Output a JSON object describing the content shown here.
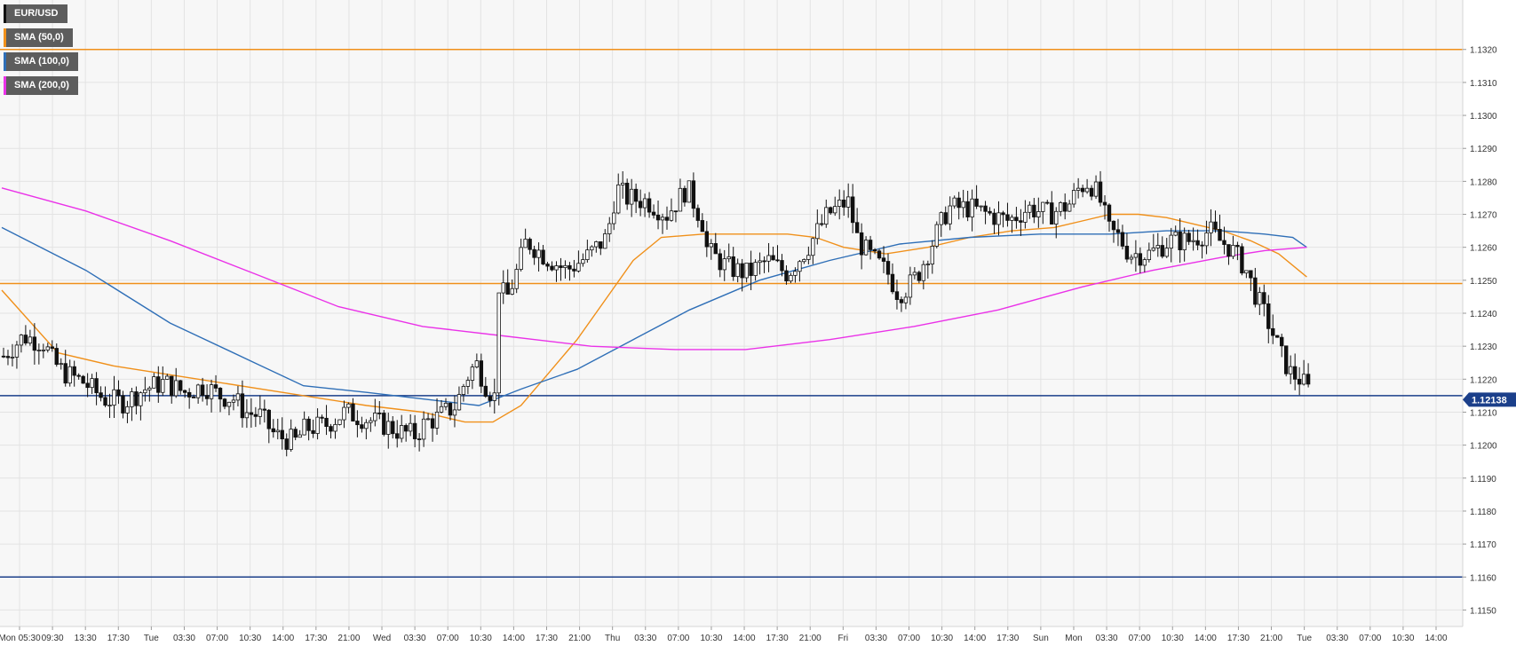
{
  "chart_data": {
    "type": "candlestick",
    "symbol": "EUR/USD",
    "y_range": [
      1.1145,
      1.1335
    ],
    "x_ticks": [
      "Mon 05:30",
      "09:30",
      "13:30",
      "17:30",
      "Tue",
      "03:30",
      "07:00",
      "10:30",
      "14:00",
      "17:30",
      "21:00",
      "Wed",
      "03:30",
      "07:00",
      "10:30",
      "14:00",
      "17:30",
      "21:00",
      "Thu",
      "03:30",
      "07:00",
      "10:30",
      "14:00",
      "17:30",
      "21:00",
      "Fri",
      "03:30",
      "07:00",
      "10:30",
      "14:00",
      "17:30",
      "Sun",
      "Mon",
      "03:30",
      "07:00",
      "10:30",
      "14:00",
      "17:30",
      "21:00",
      "Tue",
      "03:30",
      "07:00",
      "10:30",
      "14:00"
    ],
    "y_ticks": [
      "1.1320",
      "1.1310",
      "1.1300",
      "1.1290",
      "1.1280",
      "1.1270",
      "1.1260",
      "1.1250",
      "1.1240",
      "1.1230",
      "1.1220",
      "1.1210",
      "1.1200",
      "1.1190",
      "1.1180",
      "1.1170",
      "1.1160",
      "1.1150"
    ],
    "indicators": [
      {
        "name": "SMA (50,0)",
        "color": "#f0901a"
      },
      {
        "name": "SMA (100,0)",
        "color": "#2f6fb7"
      },
      {
        "name": "SMA (200,0)",
        "color": "#ea32e8"
      }
    ],
    "sma_anchor_points": {
      "sma50": [
        [
          0,
          1.1247
        ],
        [
          40,
          1.1228
        ],
        [
          80,
          1.1224
        ],
        [
          140,
          1.122
        ],
        [
          200,
          1.1216
        ],
        [
          260,
          1.1212
        ],
        [
          300,
          1.121
        ],
        [
          330,
          1.1207
        ],
        [
          350,
          1.1207
        ],
        [
          370,
          1.1212
        ],
        [
          390,
          1.1222
        ],
        [
          410,
          1.1232
        ],
        [
          430,
          1.1244
        ],
        [
          450,
          1.1256
        ],
        [
          470,
          1.1263
        ],
        [
          500,
          1.1264
        ],
        [
          530,
          1.1264
        ],
        [
          560,
          1.1264
        ],
        [
          580,
          1.1263
        ],
        [
          600,
          1.126
        ],
        [
          630,
          1.1258
        ],
        [
          660,
          1.126
        ],
        [
          690,
          1.1263
        ],
        [
          720,
          1.1265
        ],
        [
          750,
          1.1266
        ],
        [
          770,
          1.1268
        ],
        [
          790,
          1.127
        ],
        [
          810,
          1.127
        ],
        [
          830,
          1.1269
        ],
        [
          850,
          1.1267
        ],
        [
          870,
          1.1265
        ],
        [
          890,
          1.1262
        ],
        [
          910,
          1.1258
        ],
        [
          930,
          1.1251
        ]
      ],
      "sma100": [
        [
          0,
          1.1266
        ],
        [
          60,
          1.1253
        ],
        [
          120,
          1.1237
        ],
        [
          180,
          1.1225
        ],
        [
          215,
          1.1218
        ],
        [
          260,
          1.1216
        ],
        [
          300,
          1.1214
        ],
        [
          340,
          1.1212
        ],
        [
          370,
          1.1217
        ],
        [
          410,
          1.1223
        ],
        [
          450,
          1.1232
        ],
        [
          490,
          1.1241
        ],
        [
          540,
          1.125
        ],
        [
          590,
          1.1256
        ],
        [
          640,
          1.1261
        ],
        [
          690,
          1.1263
        ],
        [
          740,
          1.1264
        ],
        [
          790,
          1.1264
        ],
        [
          830,
          1.1265
        ],
        [
          870,
          1.1265
        ],
        [
          900,
          1.1264
        ],
        [
          920,
          1.1263
        ],
        [
          930,
          1.126
        ]
      ],
      "sma200": [
        [
          0,
          1.1278
        ],
        [
          60,
          1.1271
        ],
        [
          120,
          1.1262
        ],
        [
          180,
          1.1252
        ],
        [
          240,
          1.1242
        ],
        [
          300,
          1.1236
        ],
        [
          360,
          1.1233
        ],
        [
          420,
          1.123
        ],
        [
          480,
          1.1229
        ],
        [
          530,
          1.1229
        ],
        [
          590,
          1.1232
        ],
        [
          650,
          1.1236
        ],
        [
          710,
          1.1241
        ],
        [
          770,
          1.1248
        ],
        [
          820,
          1.1253
        ],
        [
          870,
          1.1257
        ],
        [
          900,
          1.1259
        ],
        [
          930,
          1.126
        ]
      ]
    },
    "horizontal_lines": [
      {
        "price": 1.132,
        "color": "#f0901a"
      },
      {
        "price": 1.1249,
        "color": "#f0901a"
      },
      {
        "price": 1.1215,
        "color": "#1b3f8a"
      },
      {
        "price": 1.116,
        "color": "#1b3f8a"
      }
    ],
    "current_price_label": "1.12138",
    "current_price_label_color": "#1b3f8a",
    "price_path_anchors": [
      [
        0,
        1.1227
      ],
      [
        20,
        1.1233
      ],
      [
        40,
        1.1231
      ],
      [
        50,
        1.1225
      ],
      [
        60,
        1.1222
      ],
      [
        80,
        1.1219
      ],
      [
        100,
        1.1214
      ],
      [
        120,
        1.1213
      ],
      [
        140,
        1.1217
      ],
      [
        160,
        1.1219
      ],
      [
        180,
        1.1216
      ],
      [
        200,
        1.1218
      ],
      [
        215,
        1.1215
      ],
      [
        230,
        1.1214
      ],
      [
        240,
        1.121
      ],
      [
        255,
        1.1209
      ],
      [
        270,
        1.1203
      ],
      [
        290,
        1.1201
      ],
      [
        300,
        1.1205
      ],
      [
        320,
        1.1206
      ],
      [
        340,
        1.121
      ],
      [
        360,
        1.1208
      ],
      [
        380,
        1.1206
      ],
      [
        395,
        1.1204
      ],
      [
        410,
        1.1203
      ],
      [
        420,
        1.1207
      ],
      [
        430,
        1.1208
      ],
      [
        440,
        1.121
      ],
      [
        450,
        1.1212
      ],
      [
        460,
        1.122
      ],
      [
        470,
        1.1225
      ],
      [
        480,
        1.1218
      ],
      [
        490,
        1.1214
      ],
      [
        492,
        1.1249
      ],
      [
        500,
        1.1244
      ],
      [
        510,
        1.1252
      ],
      [
        520,
        1.1262
      ],
      [
        540,
        1.1257
      ],
      [
        560,
        1.1253
      ],
      [
        580,
        1.1257
      ],
      [
        600,
        1.1263
      ],
      [
        610,
        1.1278
      ],
      [
        620,
        1.1275
      ],
      [
        640,
        1.1274
      ],
      [
        660,
        1.127
      ],
      [
        680,
        1.1278
      ],
      [
        695,
        1.1268
      ],
      [
        700,
        1.1259
      ],
      [
        720,
        1.1254
      ],
      [
        740,
        1.1252
      ],
      [
        760,
        1.1256
      ],
      [
        780,
        1.1252
      ],
      [
        800,
        1.126
      ],
      [
        820,
        1.127
      ],
      [
        840,
        1.1274
      ],
      [
        850,
        1.1262
      ],
      [
        860,
        1.1258
      ],
      [
        880,
        1.1252
      ],
      [
        890,
        1.1246
      ],
      [
        900,
        1.1248
      ],
      [
        910,
        1.1252
      ],
      [
        925,
        1.1262
      ],
      [
        940,
        1.1272
      ],
      [
        960,
        1.1272
      ],
      [
        980,
        1.127
      ],
      [
        1000,
        1.1268
      ],
      [
        1020,
        1.1272
      ],
      [
        1040,
        1.127
      ],
      [
        1060,
        1.1273
      ],
      [
        1070,
        1.1278
      ],
      [
        1080,
        1.128
      ],
      [
        1090,
        1.1275
      ],
      [
        1100,
        1.1265
      ],
      [
        1110,
        1.1263
      ],
      [
        1120,
        1.1258
      ],
      [
        1140,
        1.1258
      ],
      [
        1160,
        1.1262
      ],
      [
        1180,
        1.1262
      ],
      [
        1200,
        1.1265
      ],
      [
        1210,
        1.1262
      ],
      [
        1220,
        1.126
      ],
      [
        1235,
        1.1254
      ],
      [
        1245,
        1.1246
      ],
      [
        1260,
        1.1236
      ],
      [
        1270,
        1.1228
      ],
      [
        1280,
        1.1222
      ],
      [
        1290,
        1.122
      ],
      [
        1300,
        1.1216
      ],
      [
        1310,
        1.1214
      ]
    ]
  }
}
